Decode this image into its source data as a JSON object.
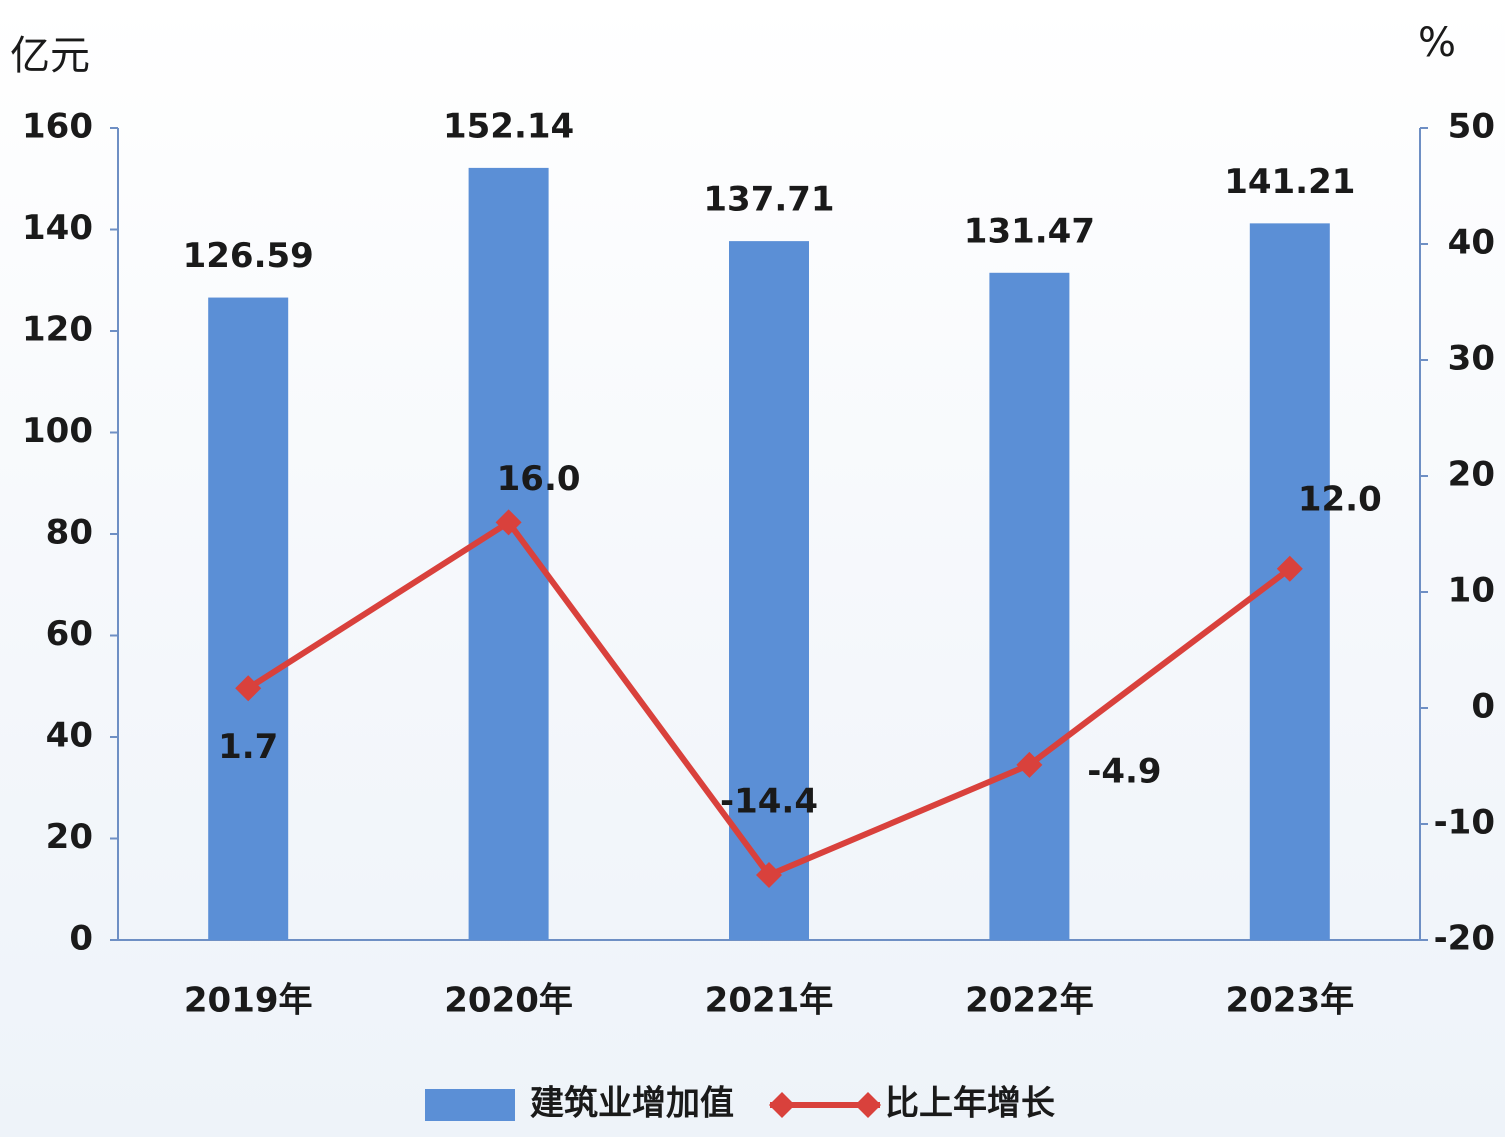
{
  "chart_data": {
    "type": "bar",
    "y_label": "亿元",
    "y2_label": "%",
    "categories": [
      "2019年",
      "2020年",
      "2021年",
      "2022年",
      "2023年"
    ],
    "series": [
      {
        "name": "建筑业增加值",
        "type": "bar",
        "color": "#5b8fd6",
        "values": [
          126.59,
          152.14,
          137.71,
          131.47,
          141.21
        ]
      },
      {
        "name": "比上年增长",
        "type": "line",
        "axis": "y2",
        "color": "#d9413c",
        "values": [
          1.7,
          16.0,
          -14.4,
          -4.9,
          12.0
        ],
        "value_labels": [
          "1.7",
          "16.0",
          "-14.4",
          "-4.9",
          "12.0"
        ]
      }
    ],
    "ylim": [
      0,
      160
    ],
    "yticks": [
      0,
      20,
      40,
      60,
      80,
      100,
      120,
      140,
      160
    ],
    "y2lim": [
      -20,
      50
    ],
    "y2ticks": [
      -20,
      -10,
      0,
      10,
      20,
      30,
      40,
      50
    ],
    "grid": false
  }
}
